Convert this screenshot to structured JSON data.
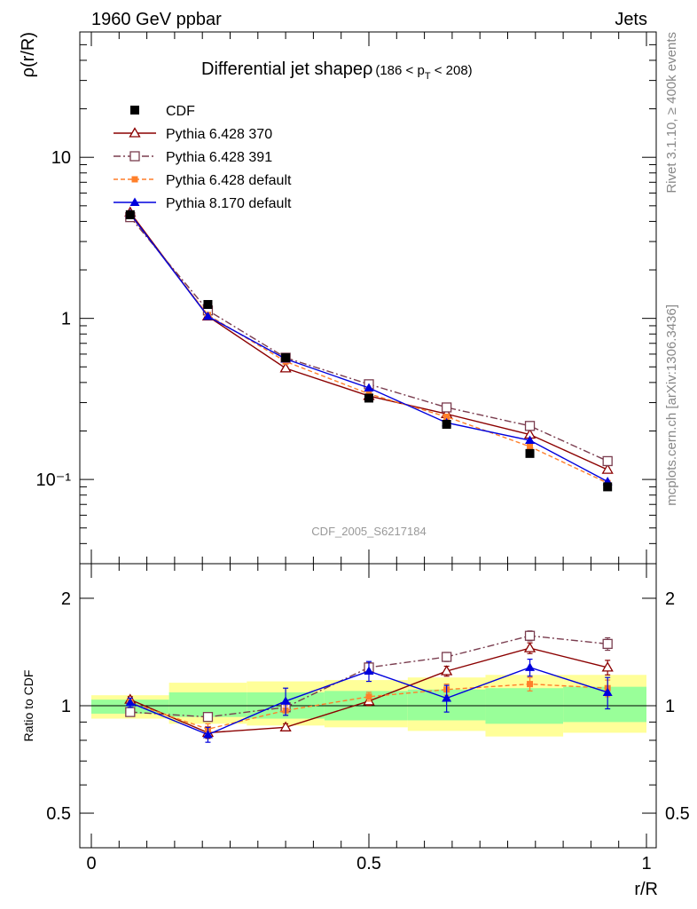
{
  "header": {
    "left": "1960 GeV ppbar",
    "right": "Jets"
  },
  "side_text": {
    "rivet": "Rivet 3.1.10, ≥ 400k events",
    "mcplots": "mcplots.cern.ch [arXiv:1306.3436]"
  },
  "watermark": "CDF_2005_S6217184",
  "main_title": "Differential jet shapeρ",
  "pt_range": {
    "open": "(186 < p",
    "sub": "T",
    "close": " < 208)"
  },
  "axes": {
    "ylabel_top": "ρ(r/R)",
    "ylabel_ratio": "Ratio to CDF",
    "xlabel": "r/R",
    "top_ticks": [
      {
        "value": 10,
        "label": "10"
      },
      {
        "value": 1,
        "label": "1"
      },
      {
        "value": 0.1,
        "label": "10⁻¹"
      }
    ],
    "ratio_ticks": [
      {
        "value": 2,
        "label": "2"
      },
      {
        "value": 1,
        "label": "1"
      },
      {
        "value": 0.5,
        "label": "0.5"
      }
    ],
    "x_ticks": [
      {
        "value": 0,
        "label": "0"
      },
      {
        "value": 0.5,
        "label": "0.5"
      },
      {
        "value": 1,
        "label": "1"
      }
    ]
  },
  "chart_data": {
    "type": "line",
    "x": [
      0.07,
      0.21,
      0.35,
      0.5,
      0.64,
      0.79,
      0.93
    ],
    "xlim": [
      0,
      1
    ],
    "top_ylim": [
      0.03,
      60
    ],
    "top_yscale": "log",
    "ratio_ylim": [
      0.4,
      2.5
    ],
    "ratio_yscale": "log",
    "legend_position": "top-left",
    "bands": [
      {
        "x0": 0.0,
        "x1": 0.14,
        "yellow": [
          0.92,
          1.07
        ],
        "green": [
          0.95,
          1.04
        ]
      },
      {
        "x0": 0.14,
        "x1": 0.28,
        "yellow": [
          0.89,
          1.16
        ],
        "green": [
          0.93,
          1.09
        ]
      },
      {
        "x0": 0.28,
        "x1": 0.42,
        "yellow": [
          0.88,
          1.17
        ],
        "green": [
          0.92,
          1.09
        ]
      },
      {
        "x0": 0.42,
        "x1": 0.57,
        "yellow": [
          0.87,
          1.18
        ],
        "green": [
          0.91,
          1.1
        ]
      },
      {
        "x0": 0.57,
        "x1": 0.71,
        "yellow": [
          0.85,
          1.2
        ],
        "green": [
          0.91,
          1.11
        ]
      },
      {
        "x0": 0.71,
        "x1": 0.85,
        "yellow": [
          0.82,
          1.22
        ],
        "green": [
          0.89,
          1.12
        ]
      },
      {
        "x0": 0.85,
        "x1": 1.0,
        "yellow": [
          0.84,
          1.22
        ],
        "green": [
          0.9,
          1.13
        ]
      }
    ],
    "series": [
      {
        "name": "CDF",
        "color": "#000000",
        "marker": "filled-square",
        "dash": "none",
        "values": [
          4.4,
          1.22,
          0.57,
          0.32,
          0.22,
          0.145,
          0.09
        ],
        "ratio": [
          1.0,
          1.0,
          1.0,
          1.0,
          1.0,
          1.0,
          1.0
        ]
      },
      {
        "name": "Pythia 6.428 370",
        "color": "#8b0000",
        "marker": "open-triangle",
        "dash": "none",
        "values": [
          4.55,
          1.03,
          0.49,
          0.33,
          0.255,
          0.19,
          0.115
        ],
        "ratio": [
          1.04,
          0.84,
          0.87,
          1.03,
          1.25,
          1.45,
          1.28
        ],
        "err": [
          0.02,
          0.03,
          0.02,
          0.03,
          0.04,
          0.05,
          0.06
        ]
      },
      {
        "name": "Pythia 6.428 391",
        "color": "#7a3d4f",
        "marker": "open-square",
        "dash": "dash-dot",
        "values": [
          4.25,
          1.12,
          0.57,
          0.39,
          0.28,
          0.215,
          0.13
        ],
        "ratio": [
          0.96,
          0.93,
          0.99,
          1.28,
          1.37,
          1.57,
          1.49
        ],
        "err": [
          0.02,
          0.02,
          0.03,
          0.04,
          0.04,
          0.05,
          0.06
        ]
      },
      {
        "name": "Pythia 6.428 default",
        "color": "#ff7f2a",
        "marker": "filled-small-square",
        "dash": "dash",
        "values": [
          4.4,
          1.05,
          0.54,
          0.34,
          0.245,
          0.16,
          0.095
        ],
        "ratio": [
          1.02,
          0.86,
          0.97,
          1.06,
          1.11,
          1.15,
          1.12
        ],
        "err": [
          0.02,
          0.03,
          0.03,
          0.03,
          0.04,
          0.05,
          0.06
        ]
      },
      {
        "name": "Pythia 8.170 default",
        "color": "#0000dd",
        "marker": "filled-triangle",
        "dash": "none",
        "values": [
          4.45,
          1.03,
          0.56,
          0.37,
          0.225,
          0.175,
          0.097
        ],
        "ratio": [
          1.02,
          0.83,
          1.03,
          1.25,
          1.05,
          1.28,
          1.09
        ],
        "err": [
          0.03,
          0.04,
          0.09,
          0.08,
          0.09,
          0.07,
          0.11
        ]
      }
    ]
  }
}
